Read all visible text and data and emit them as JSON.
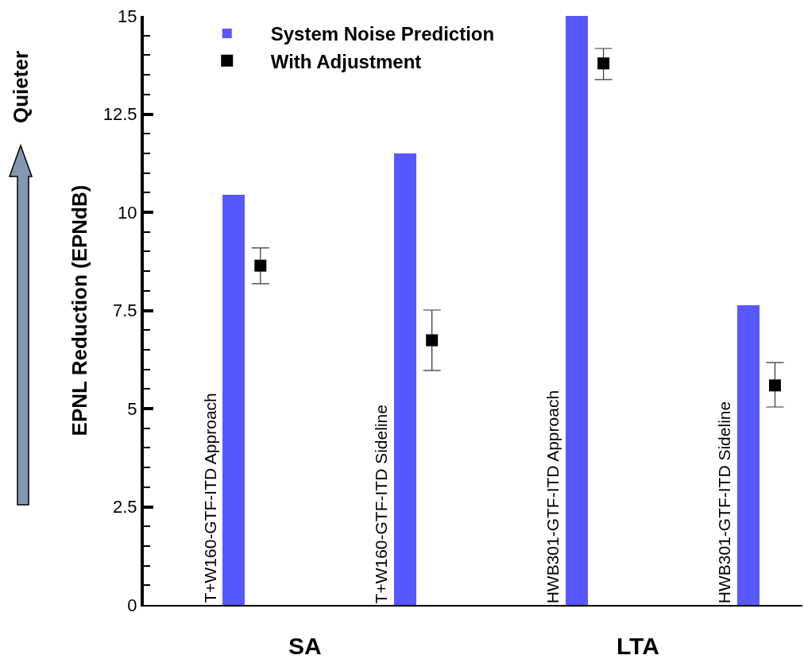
{
  "chart_data": {
    "type": "bar",
    "ylabel": "EPNL Reduction (EPNdB)",
    "categories": [
      "T+W160-GTF-ITD Approach",
      "T+W160-GTF-ITD Sideline",
      "HWB301-GTF-ITD Approach",
      "HWB301-GTF-ITD Sideline"
    ],
    "series": [
      {
        "name": "System Noise Prediction",
        "color": "#5858ff",
        "values": [
          10.45,
          11.5,
          15.0,
          7.63
        ]
      },
      {
        "name": "With Adjustment",
        "type": "scatter",
        "color": "#000000",
        "marker": "square",
        "x": [
          "T+W160-GTF-ITD Approach",
          "T+W160-GTF-ITD Sideline",
          "HWB301-GTF-ITD Approach",
          "HWB301-GTF-ITD Sideline"
        ],
        "values": [
          8.64,
          6.74,
          13.79,
          5.59
        ],
        "errors": [
          [
            8.18,
            9.09
          ],
          [
            5.97,
            7.51
          ],
          [
            13.38,
            14.17
          ],
          [
            5.04,
            6.17
          ]
        ]
      }
    ],
    "ylim": [
      0,
      15
    ],
    "yticks": [
      0,
      {
        "value": 0.5,
        "label": null
      },
      {
        "value": 1,
        "label": null
      },
      {
        "value": 1.5,
        "label": null
      },
      {
        "value": 2,
        "label": null
      },
      2.5,
      {
        "value": 3,
        "label": null
      },
      {
        "value": 3.5,
        "label": null
      },
      {
        "value": 4,
        "label": null
      },
      {
        "value": 4.5,
        "label": null
      },
      5,
      {
        "value": 5.5,
        "label": null
      },
      {
        "value": 6,
        "label": null
      },
      {
        "value": 6.5,
        "label": null
      },
      {
        "value": 7,
        "label": null
      },
      7.5,
      {
        "value": 8,
        "label": null
      },
      {
        "value": 8.5,
        "label": null
      },
      {
        "value": 9,
        "label": null
      },
      {
        "value": 9.5,
        "label": null
      },
      10,
      {
        "value": 10.5,
        "label": null
      },
      {
        "value": 11,
        "label": null
      },
      {
        "value": 11.5,
        "label": null
      },
      {
        "value": 12,
        "label": null
      },
      12.5,
      {
        "value": 13,
        "label": null
      },
      {
        "value": 13.5,
        "label": null
      },
      {
        "value": 14,
        "label": null
      },
      {
        "value": 14.5,
        "label": null
      },
      15
    ],
    "annotations": [
      "SA",
      "LTA",
      "Quieter"
    ],
    "legend": "top left",
    "tick_labels": "y"
  }
}
